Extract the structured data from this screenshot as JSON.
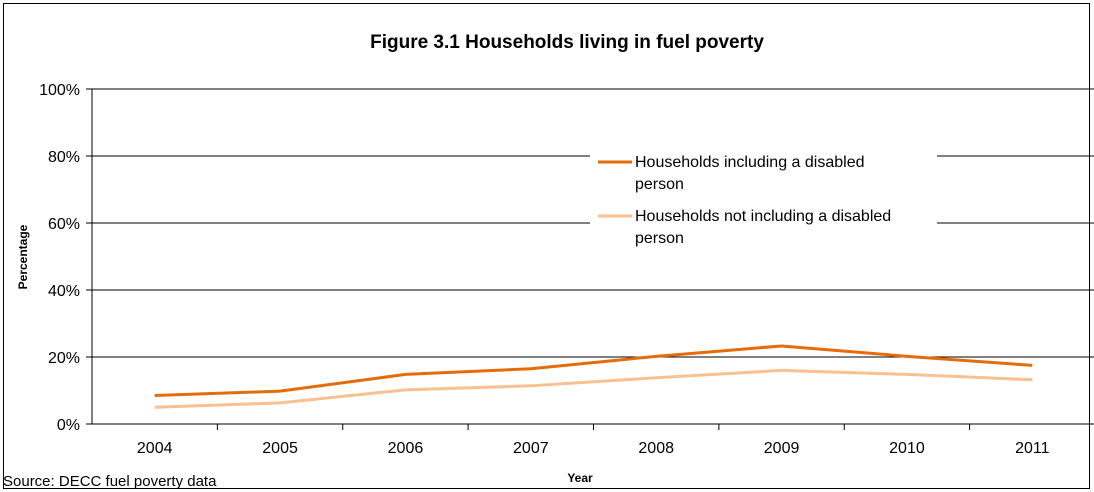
{
  "chart_data": {
    "type": "line",
    "title": "Figure 3.1 Households living in fuel poverty",
    "xlabel": "Year",
    "ylabel": "Percentage",
    "source": "Source: DECC fuel poverty data",
    "categories": [
      "2004",
      "2005",
      "2006",
      "2007",
      "2008",
      "2009",
      "2010",
      "2011"
    ],
    "ylim": [
      0,
      100
    ],
    "yticks": [
      "0%",
      "20%",
      "40%",
      "60%",
      "80%",
      "100%"
    ],
    "grid": true,
    "legend_position": "top-right",
    "series": [
      {
        "name": "Households including a disabled person",
        "legend_lines": [
          "Households including a disabled",
          "person"
        ],
        "color": "#E46C0A",
        "values": [
          8.5,
          9.8,
          14.8,
          16.5,
          20.2,
          23.3,
          20.2,
          17.5
        ]
      },
      {
        "name": "Households not including a disabled person",
        "legend_lines": [
          "Households not including a disabled",
          "person"
        ],
        "color": "#FAC090",
        "values": [
          5.0,
          6.3,
          10.2,
          11.4,
          13.8,
          16.0,
          14.8,
          13.2
        ]
      }
    ]
  }
}
